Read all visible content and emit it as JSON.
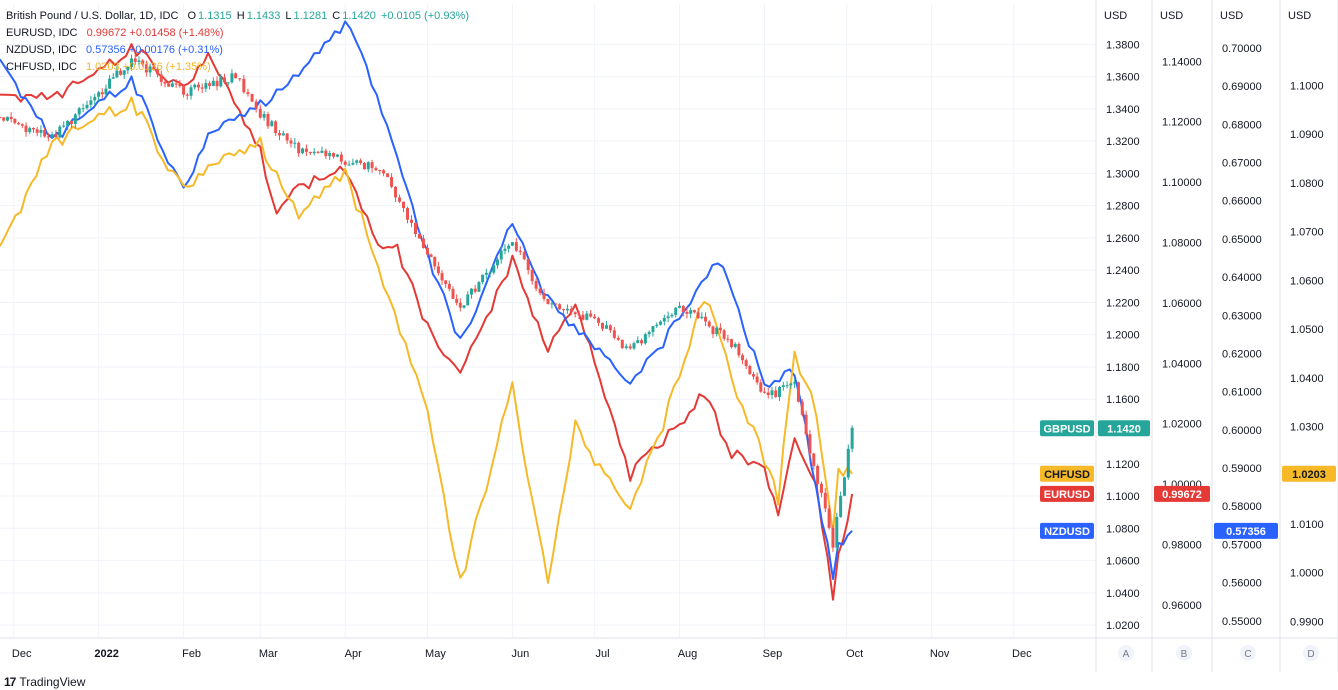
{
  "legend": {
    "main": {
      "symbol": "British Pound / U.S. Dollar, 1D, IDC",
      "o_label": "O",
      "o": "1.1315",
      "h_label": "H",
      "h": "1.1433",
      "l_label": "L",
      "l": "1.1281",
      "c_label": "C",
      "c": "1.1420",
      "change": "+0.0105 (+0.93%)"
    },
    "rows": [
      {
        "symbol": "EURUSD, IDC",
        "value": "0.99672",
        "change": "+0.01458 (+1.48%)",
        "color": "#e53935"
      },
      {
        "symbol": "NZDUSD, IDC",
        "value": "0.57356",
        "change": "+0.00176 (+0.31%)",
        "color": "#2962ff"
      },
      {
        "symbol": "CHFUSD, IDC",
        "value": "1.0203",
        "change": "+0.0136 (+1.35%)",
        "color": "#f0b429"
      }
    ]
  },
  "colors": {
    "up": "#26a69a",
    "down": "#ef5350",
    "eur": "#e53935",
    "nzd": "#2962ff",
    "chf": "#f7b928",
    "gbp_tag": "#26a69a",
    "grid": "#f0f3fa",
    "axis_text": "#131722"
  },
  "footer": {
    "logo_glyph": "17",
    "logo_text": "TradingView"
  },
  "chart_data": {
    "type": "line",
    "title": "British Pound / U.S. Dollar, 1D, IDC",
    "x_labels": [
      "Dec",
      "2022",
      "Feb",
      "Mar",
      "Apr",
      "May",
      "Jun",
      "Jul",
      "Aug",
      "Sep",
      "Oct",
      "Nov",
      "Dec"
    ],
    "x_range": [
      "2021-11-26",
      "2022-12-31"
    ],
    "scale_letters": [
      "A",
      "B",
      "C",
      "D"
    ],
    "axes": {
      "A": {
        "unit": "USD",
        "range": [
          1.012,
          1.405
        ],
        "ticks": [
          "1.0200",
          "1.0400",
          "1.0600",
          "1.0800",
          "1.1000",
          "1.1200",
          "1.1400",
          "1.1600",
          "1.1800",
          "1.2000",
          "1.2200",
          "1.2400",
          "1.2600",
          "1.2800",
          "1.3000",
          "1.3200",
          "1.3400",
          "1.3600",
          "1.3800"
        ]
      },
      "B": {
        "unit": "USD",
        "range": [
          0.949,
          1.159
        ],
        "ticks": [
          "0.96000",
          "0.98000",
          "1.00000",
          "1.02000",
          "1.04000",
          "1.06000",
          "1.08000",
          "1.10000",
          "1.12000",
          "1.14000"
        ]
      },
      "C": {
        "unit": "USD",
        "range": [
          0.5455,
          0.7115
        ],
        "ticks": [
          "0.55000",
          "0.56000",
          "0.57000",
          "0.58000",
          "0.59000",
          "0.60000",
          "0.61000",
          "0.62000",
          "0.63000",
          "0.64000",
          "0.65000",
          "0.66000",
          "0.67000",
          "0.68000",
          "0.69000",
          "0.70000"
        ]
      },
      "D": {
        "unit": "USD",
        "range": [
          0.9866,
          1.1167
        ],
        "ticks": [
          "0.9900",
          "1.0000",
          "1.0100",
          "1.0200",
          "1.0300",
          "1.0400",
          "1.0500",
          "1.0600",
          "1.0700",
          "1.0800",
          "1.0900",
          "1.1000"
        ]
      }
    },
    "tags": [
      {
        "label": "GBPUSD",
        "value": "1.1420",
        "axis": "A",
        "y": 1.142,
        "color": "#26a69a"
      },
      {
        "label": "CHFUSD",
        "value": "1.0203",
        "axis": "D",
        "y": 1.0203,
        "color": "#f7b928"
      },
      {
        "label": "EURUSD",
        "value": "0.99672",
        "axis": "B",
        "y": 0.99672,
        "color": "#e53935"
      },
      {
        "label": "NZDUSD",
        "value": "0.57356",
        "axis": "C",
        "y": 0.57356,
        "color": "#2962ff"
      }
    ],
    "series": [
      {
        "name": "GBPUSD",
        "kind": "candles",
        "axis": "A",
        "x": [
          "2021-11-26",
          "2021-12-15",
          "2022-01-01",
          "2022-01-13",
          "2022-02-01",
          "2022-02-20",
          "2022-03-01",
          "2022-03-15",
          "2022-04-01",
          "2022-04-15",
          "2022-05-01",
          "2022-05-13",
          "2022-06-01",
          "2022-06-14",
          "2022-07-01",
          "2022-07-14",
          "2022-08-01",
          "2022-08-20",
          "2022-09-01",
          "2022-09-12",
          "2022-09-26",
          "2022-10-03"
        ],
        "y": [
          1.335,
          1.322,
          1.349,
          1.371,
          1.35,
          1.36,
          1.336,
          1.315,
          1.308,
          1.302,
          1.25,
          1.218,
          1.258,
          1.218,
          1.21,
          1.19,
          1.218,
          1.195,
          1.162,
          1.168,
          1.07,
          1.142
        ]
      },
      {
        "name": "EURUSD",
        "axis": "B",
        "x": [
          "2021-11-26",
          "2021-12-15",
          "2022-01-01",
          "2022-01-13",
          "2022-02-01",
          "2022-02-10",
          "2022-03-01",
          "2022-03-07",
          "2022-03-15",
          "2022-04-01",
          "2022-04-13",
          "2022-04-20",
          "2022-05-01",
          "2022-05-13",
          "2022-06-01",
          "2022-06-14",
          "2022-06-24",
          "2022-07-01",
          "2022-07-14",
          "2022-08-01",
          "2022-08-10",
          "2022-08-20",
          "2022-09-01",
          "2022-09-06",
          "2022-09-12",
          "2022-09-20",
          "2022-09-26",
          "2022-09-28",
          "2022-10-03"
        ],
        "y": [
          1.129,
          1.128,
          1.136,
          1.145,
          1.13,
          1.142,
          1.11,
          1.09,
          1.098,
          1.105,
          1.08,
          1.078,
          1.052,
          1.037,
          1.074,
          1.045,
          1.058,
          1.04,
          1.003,
          1.02,
          1.03,
          1.01,
          1.005,
          0.991,
          1.015,
          0.998,
          0.962,
          0.975,
          0.99672
        ]
      },
      {
        "name": "NZDUSD",
        "axis": "C",
        "x": [
          "2021-11-26",
          "2021-12-15",
          "2022-01-01",
          "2022-01-13",
          "2022-02-01",
          "2022-02-10",
          "2022-03-01",
          "2022-03-15",
          "2022-04-01",
          "2022-04-05",
          "2022-04-20",
          "2022-05-01",
          "2022-05-13",
          "2022-06-01",
          "2022-06-14",
          "2022-07-01",
          "2022-07-14",
          "2022-08-01",
          "2022-08-15",
          "2022-09-01",
          "2022-09-12",
          "2022-09-26",
          "2022-09-28",
          "2022-10-03"
        ],
        "y": [
          0.697,
          0.676,
          0.685,
          0.692,
          0.662,
          0.677,
          0.685,
          0.693,
          0.706,
          0.703,
          0.672,
          0.646,
          0.623,
          0.654,
          0.634,
          0.622,
          0.611,
          0.629,
          0.645,
          0.612,
          0.615,
          0.562,
          0.57,
          0.57356
        ]
      },
      {
        "name": "CHFUSD",
        "axis": "D",
        "x": [
          "2021-11-26",
          "2021-12-15",
          "2022-01-01",
          "2022-01-13",
          "2022-02-01",
          "2022-02-10",
          "2022-03-01",
          "2022-03-15",
          "2022-04-01",
          "2022-04-15",
          "2022-05-01",
          "2022-05-13",
          "2022-06-01",
          "2022-06-14",
          "2022-06-24",
          "2022-07-01",
          "2022-07-14",
          "2022-08-01",
          "2022-08-10",
          "2022-08-20",
          "2022-09-01",
          "2022-09-06",
          "2022-09-12",
          "2022-09-20",
          "2022-09-26",
          "2022-09-28",
          "2022-10-03"
        ],
        "y": [
          1.067,
          1.088,
          1.093,
          1.097,
          1.078,
          1.083,
          1.088,
          1.073,
          1.082,
          1.06,
          1.034,
          0.998,
          1.038,
          0.998,
          1.03,
          1.023,
          1.012,
          1.04,
          1.057,
          1.04,
          1.023,
          1.015,
          1.045,
          1.033,
          1.008,
          1.02,
          1.0203
        ]
      }
    ]
  }
}
